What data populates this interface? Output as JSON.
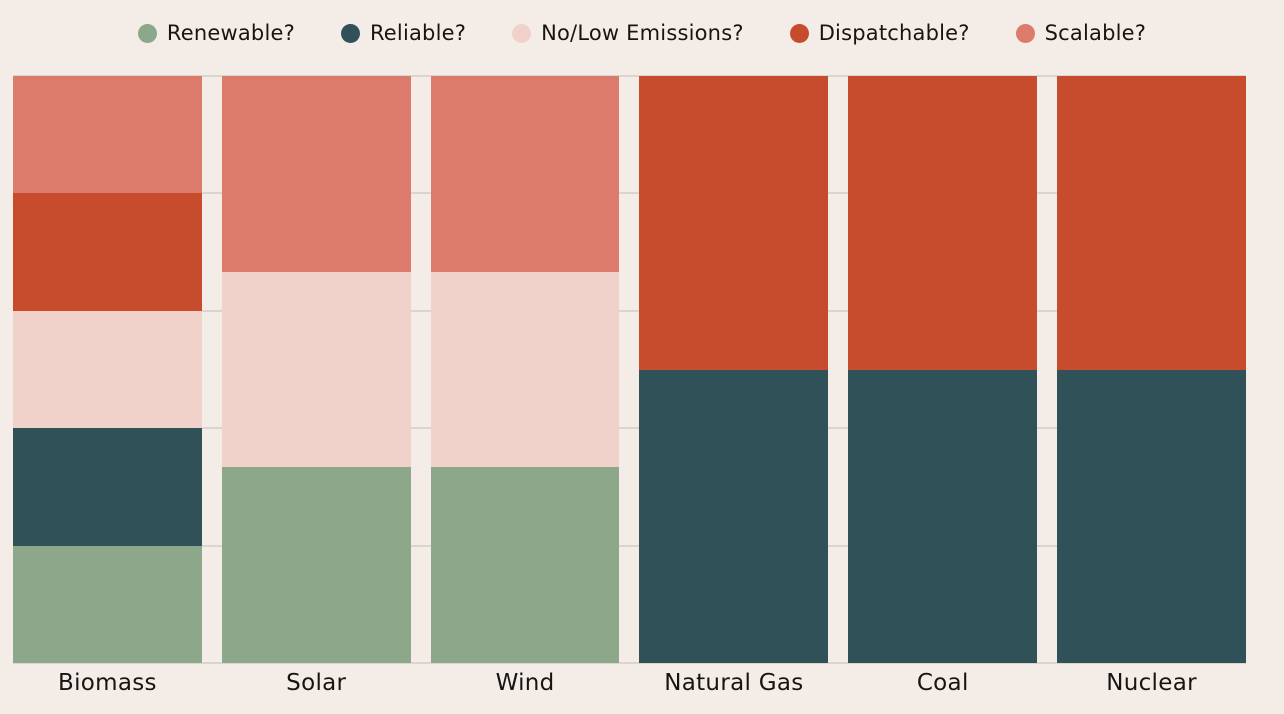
{
  "colors": {
    "background": "#F4EDE7",
    "gridline": "#DBD5CF",
    "text": "#161514"
  },
  "legend": {
    "items": [
      {
        "label": "Renewable?",
        "color": "#8DA78B"
      },
      {
        "label": "Reliable?",
        "color": "#315158"
      },
      {
        "label": "No/Low Emissions?",
        "color": "#F0D2CB"
      },
      {
        "label": "Dispatchable?",
        "color": "#C64C2D"
      },
      {
        "label": "Scalable?",
        "color": "#DC7A6B"
      }
    ]
  },
  "chart_data": {
    "type": "bar",
    "subtype": "stacked-normalized",
    "title": "",
    "xlabel": "",
    "ylabel": "",
    "grid": true,
    "gridline_rows": 5,
    "legend_position": "top-center",
    "categories": [
      "Biomass",
      "Solar",
      "Wind",
      "Natural Gas",
      "Coal",
      "Nuclear"
    ],
    "series": [
      {
        "name": "Renewable?",
        "color": "#8DA78B",
        "applies": [
          true,
          true,
          true,
          false,
          false,
          false
        ]
      },
      {
        "name": "Reliable?",
        "color": "#315158",
        "applies": [
          true,
          false,
          false,
          true,
          true,
          true
        ]
      },
      {
        "name": "No/Low Emissions?",
        "color": "#F0D2CB",
        "applies": [
          true,
          true,
          true,
          false,
          false,
          false
        ]
      },
      {
        "name": "Dispatchable?",
        "color": "#C64C2D",
        "applies": [
          true,
          false,
          false,
          true,
          true,
          true
        ]
      },
      {
        "name": "Scalable?",
        "color": "#DC7A6B",
        "applies": [
          true,
          true,
          true,
          false,
          false,
          false
        ]
      }
    ],
    "segment_fractions": {
      "Biomass": {
        "Renewable?": 0.2,
        "Reliable?": 0.2,
        "No/Low Emissions?": 0.2,
        "Dispatchable?": 0.2,
        "Scalable?": 0.2
      },
      "Solar": {
        "Renewable?": 0.3333,
        "No/Low Emissions?": 0.3333,
        "Scalable?": 0.3333
      },
      "Wind": {
        "Renewable?": 0.3333,
        "No/Low Emissions?": 0.3333,
        "Scalable?": 0.3333
      },
      "Natural Gas": {
        "Reliable?": 0.5,
        "Dispatchable?": 0.5
      },
      "Coal": {
        "Reliable?": 0.5,
        "Dispatchable?": 0.5
      },
      "Nuclear": {
        "Reliable?": 0.5,
        "Dispatchable?": 0.5
      }
    },
    "note": "Each column has equal total height, divided equally among the attributes that apply to that energy source; stack order bottom-to-top is Renewable, Reliable, No/Low Emissions, Dispatchable, Scalable."
  }
}
